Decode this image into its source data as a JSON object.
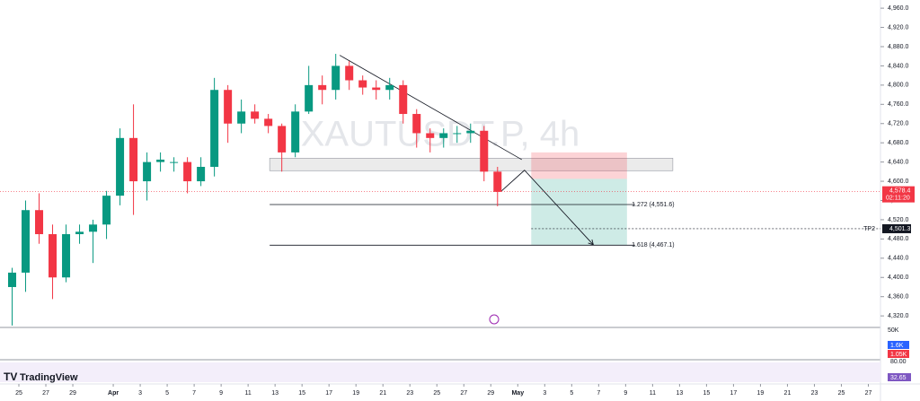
{
  "chart_data": {
    "type": "candlestick",
    "watermark": "XAUTUSDT.P, 4h",
    "brand": "TradingView",
    "up_color": "#089981",
    "down_color": "#f23645",
    "xlim": [
      -1.4,
      63.9
    ],
    "ylim": [
      4296,
      4977
    ],
    "xticks": [
      {
        "value": 0,
        "label": "25"
      },
      {
        "value": 2,
        "label": "27"
      },
      {
        "value": 4,
        "label": "29"
      },
      {
        "value": 7,
        "label": "Apr"
      },
      {
        "value": 9,
        "label": "3"
      },
      {
        "value": 11,
        "label": "5"
      },
      {
        "value": 13,
        "label": "7"
      },
      {
        "value": 15,
        "label": "9"
      },
      {
        "value": 17,
        "label": "11"
      },
      {
        "value": 19,
        "label": "13"
      },
      {
        "value": 21,
        "label": "15"
      },
      {
        "value": 23,
        "label": "17"
      },
      {
        "value": 25,
        "label": "19"
      },
      {
        "value": 27,
        "label": "21"
      },
      {
        "value": 29,
        "label": "23"
      },
      {
        "value": 31,
        "label": "25"
      },
      {
        "value": 33,
        "label": "27"
      },
      {
        "value": 35,
        "label": "29"
      },
      {
        "value": 37,
        "label": "May"
      },
      {
        "value": 39,
        "label": "3"
      },
      {
        "value": 41,
        "label": "5"
      },
      {
        "value": 43,
        "label": "7"
      },
      {
        "value": 45,
        "label": "9"
      },
      {
        "value": 47,
        "label": "11"
      },
      {
        "value": 49,
        "label": "13"
      },
      {
        "value": 51,
        "label": "15"
      },
      {
        "value": 53,
        "label": "17"
      },
      {
        "value": 55,
        "label": "19"
      },
      {
        "value": 57,
        "label": "21"
      },
      {
        "value": 59,
        "label": "23"
      },
      {
        "value": 61,
        "label": "25"
      },
      {
        "value": 63,
        "label": "27"
      }
    ],
    "yticks": [
      {
        "value": 4320,
        "label": "4,320.0"
      },
      {
        "value": 4360,
        "label": "4,360.0"
      },
      {
        "value": 4400,
        "label": "4,400.0"
      },
      {
        "value": 4440,
        "label": "4,440.0"
      },
      {
        "value": 4480,
        "label": "4,480.0"
      },
      {
        "value": 4520,
        "label": "4,520.0"
      },
      {
        "value": 4560,
        "label": "4,560.0"
      },
      {
        "value": 4600,
        "label": "4,600.0"
      },
      {
        "value": 4640,
        "label": "4,640.0"
      },
      {
        "value": 4680,
        "label": "4,680.0"
      },
      {
        "value": 4720,
        "label": "4,720.0"
      },
      {
        "value": 4760,
        "label": "4,760.0"
      },
      {
        "value": 4800,
        "label": "4,800.0"
      },
      {
        "value": 4840,
        "label": "4,840.0"
      },
      {
        "value": 4880,
        "label": "4,880.0"
      },
      {
        "value": 4920,
        "label": "4,920.0"
      },
      {
        "value": 4960,
        "label": "4,960.0"
      }
    ],
    "candles": {
      "x": [
        -1,
        0,
        1,
        2,
        3,
        4,
        5,
        6,
        7,
        8,
        9,
        10,
        11,
        12,
        13,
        14,
        15,
        16,
        17,
        18,
        19,
        20,
        21,
        22,
        23,
        24,
        25,
        26,
        27,
        28,
        29,
        30,
        31,
        32,
        33,
        34,
        35
      ],
      "open": [
        4380,
        4410,
        4540,
        4490,
        4400,
        4490,
        4495,
        4510,
        4570,
        4690,
        4600,
        4640,
        4640,
        4640,
        4600,
        4630,
        4790,
        4720,
        4745,
        4730,
        4715,
        4660,
        4745,
        4800,
        4790,
        4840,
        4810,
        4795,
        4790,
        4800,
        4740,
        4700,
        4690,
        4700,
        4700,
        4705,
        4620
      ],
      "high": [
        4420,
        4560,
        4575,
        4510,
        4510,
        4510,
        4520,
        4580,
        4710,
        4760,
        4660,
        4660,
        4650,
        4650,
        4650,
        4815,
        4800,
        4770,
        4760,
        4740,
        4720,
        4760,
        4840,
        4820,
        4865,
        4850,
        4820,
        4810,
        4815,
        4810,
        4750,
        4710,
        4710,
        4715,
        4720,
        4715,
        4630
      ],
      "low": [
        4300,
        4370,
        4470,
        4355,
        4390,
        4470,
        4430,
        4480,
        4550,
        4530,
        4560,
        4620,
        4620,
        4575,
        4590,
        4610,
        4680,
        4700,
        4720,
        4700,
        4620,
        4650,
        4740,
        4760,
        4770,
        4790,
        4780,
        4770,
        4770,
        4720,
        4670,
        4660,
        4670,
        4680,
        4680,
        4600,
        4548
      ],
      "close": [
        4410,
        4540,
        4490,
        4400,
        4490,
        4495,
        4510,
        4570,
        4690,
        4600,
        4640,
        4645,
        4640,
        4600,
        4630,
        4790,
        4720,
        4745,
        4730,
        4715,
        4660,
        4745,
        4800,
        4790,
        4840,
        4810,
        4795,
        4790,
        4800,
        4740,
        4700,
        4690,
        4700,
        4700,
        4705,
        4620,
        4578
      ]
    },
    "last_price": {
      "value": 4578.4,
      "label": "4,578.4",
      "countdown": "02:11:20"
    },
    "zone": {
      "x": [
        18.6,
        48.5
      ],
      "y": [
        4622,
        4648
      ]
    },
    "trendline": {
      "x": [
        23.8,
        37.3
      ],
      "y": [
        4862,
        4645
      ]
    },
    "fib_levels": [
      {
        "value": 4551.6,
        "label": "1.272 (4,551.6)",
        "x": [
          18.6,
          45.7
        ]
      },
      {
        "value": 4467.1,
        "label": "1.618 (4,467.1)",
        "x": [
          18.6,
          45.7
        ]
      }
    ],
    "position": {
      "x": [
        38.0,
        45.1
      ],
      "entry": 4605,
      "stop": 4660,
      "target": 4467
    },
    "arrow": {
      "x": [
        35.8,
        37.5,
        42.6
      ],
      "y": [
        4580,
        4623,
        4468
      ]
    },
    "tp2": {
      "name": "TP2",
      "value": 4501.3,
      "label": "4,501.3",
      "x": 38.0
    },
    "volume_labels": {
      "scale": "50K",
      "blue": "1.6K",
      "red": "1.05K"
    },
    "rsi_labels": {
      "upper": "80.00",
      "value": "32.65"
    }
  }
}
